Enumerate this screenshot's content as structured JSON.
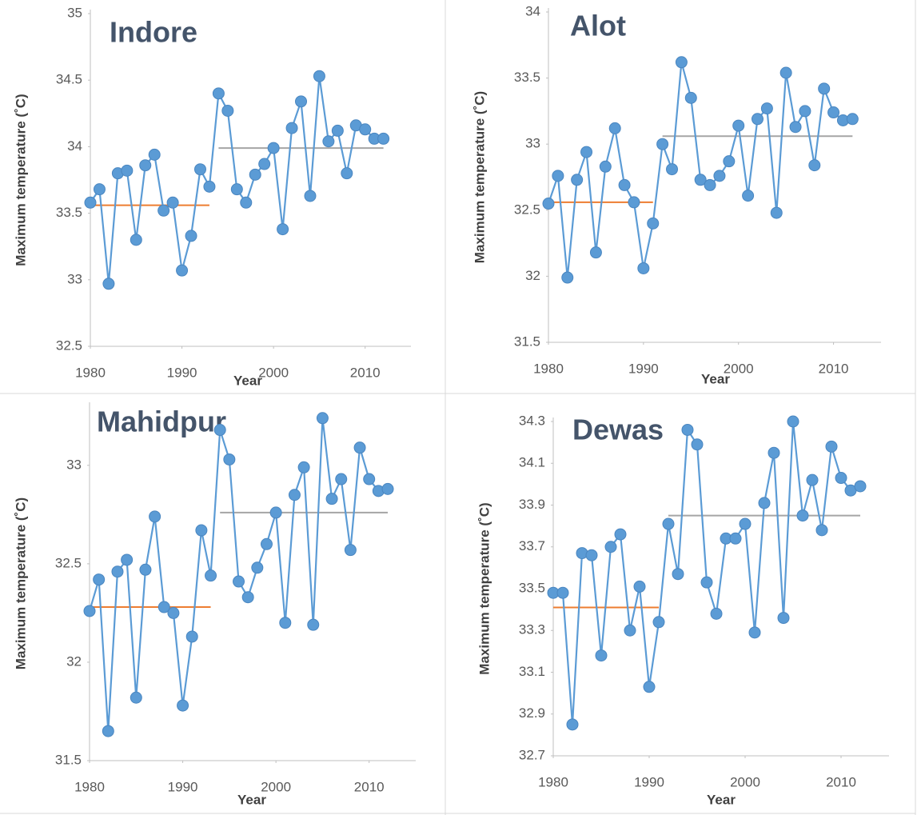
{
  "chart_data": [
    {
      "type": "line",
      "title": "Indore",
      "xlabel": "Year",
      "ylabel": "Maximum temperature (˚C)",
      "x": [
        1980,
        1981,
        1982,
        1983,
        1984,
        1985,
        1986,
        1987,
        1988,
        1989,
        1990,
        1991,
        1992,
        1993,
        1994,
        1995,
        1996,
        1997,
        1998,
        1999,
        2000,
        2001,
        2002,
        2003,
        2004,
        2005,
        2006,
        2007,
        2008,
        2009,
        2010,
        2011,
        2012
      ],
      "series": [
        {
          "color": "#5b9bd5",
          "values": [
            33.58,
            33.68,
            32.97,
            33.8,
            33.82,
            33.3,
            33.86,
            33.94,
            33.52,
            33.58,
            33.07,
            33.33,
            33.83,
            33.7,
            34.4,
            34.27,
            33.68,
            33.58,
            33.79,
            33.87,
            33.99,
            33.38,
            34.14,
            34.34,
            33.63,
            34.53,
            34.04,
            34.12,
            33.8,
            34.16,
            34.13,
            34.06,
            34.06
          ]
        }
      ],
      "mean_lines": [
        {
          "x": [
            1980,
            1993
          ],
          "value": 33.56,
          "color": "#ed7d31"
        },
        {
          "x": [
            1994,
            2012
          ],
          "value": 33.99,
          "color": "#a5a5a5"
        }
      ],
      "xlim": [
        1980,
        2015
      ],
      "xticks": [
        1980,
        1990,
        2000,
        2010
      ],
      "ylim": [
        32.5,
        35
      ],
      "yticks": [
        32.5,
        33,
        33.5,
        34,
        34.5,
        35
      ]
    },
    {
      "type": "line",
      "title": "Alot",
      "xlabel": "Year",
      "ylabel": "Maximum temperature (˚C)",
      "x": [
        1980,
        1981,
        1982,
        1983,
        1984,
        1985,
        1986,
        1987,
        1988,
        1989,
        1990,
        1991,
        1992,
        1993,
        1994,
        1995,
        1996,
        1997,
        1998,
        1999,
        2000,
        2001,
        2002,
        2003,
        2004,
        2005,
        2006,
        2007,
        2008,
        2009,
        2010,
        2011,
        2012
      ],
      "series": [
        {
          "color": "#5b9bd5",
          "values": [
            32.55,
            32.76,
            31.99,
            32.73,
            32.94,
            32.18,
            32.83,
            33.12,
            32.69,
            32.56,
            32.06,
            32.4,
            33.0,
            32.81,
            33.62,
            33.35,
            32.73,
            32.69,
            32.76,
            32.87,
            33.14,
            32.61,
            33.19,
            33.27,
            32.48,
            33.54,
            33.13,
            33.25,
            32.84,
            33.42,
            33.24,
            33.18,
            33.19
          ]
        }
      ],
      "mean_lines": [
        {
          "x": [
            1980,
            1991
          ],
          "value": 32.56,
          "color": "#ed7d31"
        },
        {
          "x": [
            1992,
            2012
          ],
          "value": 33.06,
          "color": "#a5a5a5"
        }
      ],
      "xlim": [
        1980,
        2015
      ],
      "xticks": [
        1980,
        1990,
        2000,
        2010
      ],
      "ylim": [
        31.5,
        34
      ],
      "yticks": [
        31.5,
        32,
        32.5,
        33,
        33.5,
        34
      ]
    },
    {
      "type": "line",
      "title": "Mahidpur",
      "xlabel": "Year",
      "ylabel": "Maximum temperature (˚C)",
      "x": [
        1980,
        1981,
        1982,
        1983,
        1984,
        1985,
        1986,
        1987,
        1988,
        1989,
        1990,
        1991,
        1992,
        1993,
        1994,
        1995,
        1996,
        1997,
        1998,
        1999,
        2000,
        2001,
        2002,
        2003,
        2004,
        2005,
        2006,
        2007,
        2008,
        2009,
        2010,
        2011,
        2012
      ],
      "series": [
        {
          "color": "#5b9bd5",
          "values": [
            32.26,
            32.42,
            31.65,
            32.46,
            32.52,
            31.82,
            32.47,
            32.74,
            32.28,
            32.25,
            31.78,
            32.13,
            32.67,
            32.44,
            33.18,
            33.03,
            32.41,
            32.33,
            32.48,
            32.6,
            32.76,
            32.2,
            32.85,
            32.99,
            32.19,
            33.24,
            32.83,
            32.93,
            32.57,
            33.09,
            32.93,
            32.87,
            32.88
          ]
        }
      ],
      "mean_lines": [
        {
          "x": [
            1980,
            1993
          ],
          "value": 32.28,
          "color": "#ed7d31"
        },
        {
          "x": [
            1994,
            2012
          ],
          "value": 32.76,
          "color": "#a5a5a5"
        }
      ],
      "xlim": [
        1980,
        2015
      ],
      "xticks": [
        1980,
        1990,
        2000,
        2010
      ],
      "ylim": [
        31.5,
        33.3
      ],
      "yticks": [
        31.5,
        32,
        32.5,
        33
      ]
    },
    {
      "type": "line",
      "title": "Dewas",
      "xlabel": "Year",
      "ylabel": "Maximum temperature (˚C)",
      "x": [
        1980,
        1981,
        1982,
        1983,
        1984,
        1985,
        1986,
        1987,
        1988,
        1989,
        1990,
        1991,
        1992,
        1993,
        1994,
        1995,
        1996,
        1997,
        1998,
        1999,
        2000,
        2001,
        2002,
        2003,
        2004,
        2005,
        2006,
        2007,
        2008,
        2009,
        2010,
        2011,
        2012
      ],
      "series": [
        {
          "color": "#5b9bd5",
          "values": [
            33.48,
            33.48,
            32.85,
            33.67,
            33.66,
            33.18,
            33.7,
            33.76,
            33.3,
            33.51,
            33.03,
            33.34,
            33.81,
            33.57,
            34.26,
            34.19,
            33.53,
            33.38,
            33.74,
            33.74,
            33.81,
            33.29,
            33.91,
            34.15,
            33.36,
            34.3,
            33.85,
            34.02,
            33.78,
            34.18,
            34.03,
            33.97,
            33.99
          ]
        }
      ],
      "mean_lines": [
        {
          "x": [
            1980,
            1991
          ],
          "value": 33.41,
          "color": "#ed7d31"
        },
        {
          "x": [
            1992,
            2012
          ],
          "value": 33.85,
          "color": "#a5a5a5"
        }
      ],
      "xlim": [
        1980,
        2015
      ],
      "xticks": [
        1980,
        1990,
        2000,
        2010
      ],
      "ylim": [
        32.7,
        34.3
      ],
      "yticks": [
        32.7,
        32.9,
        33.1,
        33.3,
        33.5,
        33.7,
        33.9,
        34.1,
        34.3
      ]
    }
  ]
}
